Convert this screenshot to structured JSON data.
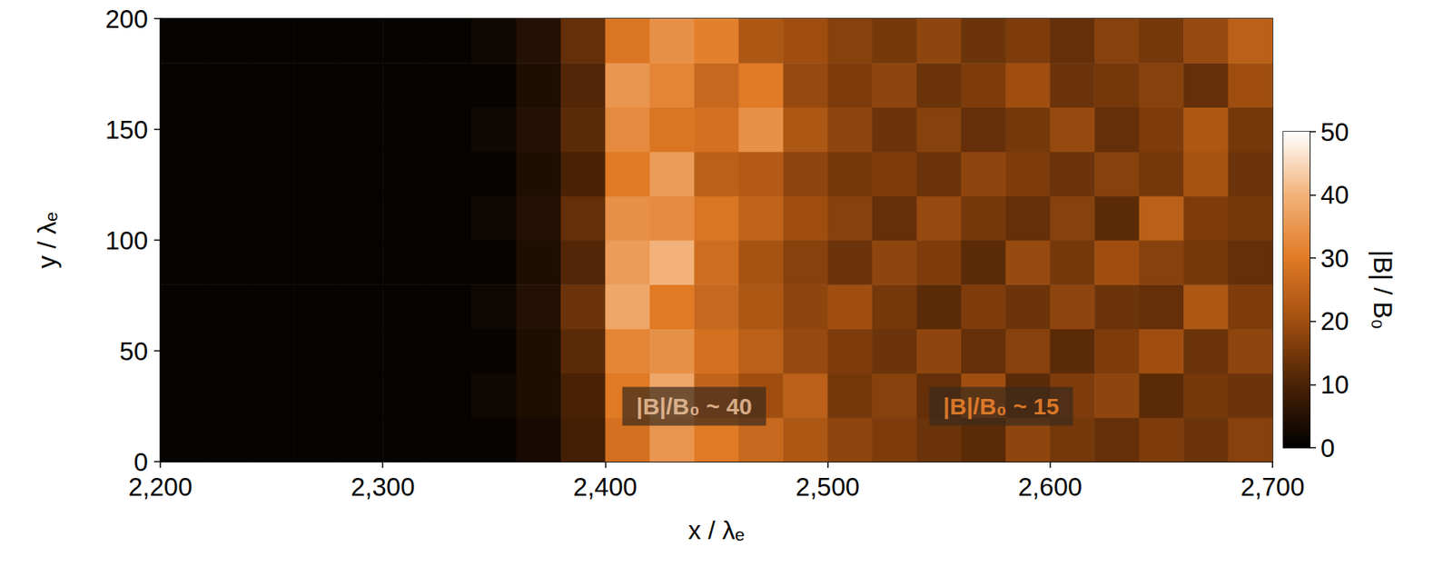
{
  "chart_data": {
    "type": "heatmap",
    "x_label": "x / λₑ",
    "y_label": "y / λₑ",
    "xlim": [
      2200,
      2700
    ],
    "xticks": [
      2200,
      2300,
      2400,
      2500,
      2600,
      2700
    ],
    "ylim": [
      0,
      200
    ],
    "yticks": [
      0,
      50,
      100,
      150,
      200
    ],
    "grid": false,
    "x_bins": [
      2200,
      2220,
      2240,
      2260,
      2280,
      2300,
      2320,
      2340,
      2360,
      2380,
      2400,
      2420,
      2440,
      2460,
      2480,
      2500,
      2520,
      2540,
      2560,
      2580,
      2600,
      2620,
      2640,
      2660,
      2680,
      2700
    ],
    "y_bins": [
      0,
      20,
      40,
      60,
      80,
      100,
      120,
      140,
      160,
      180,
      200
    ],
    "values": [
      [
        1,
        1,
        1,
        1,
        1,
        1,
        1,
        1,
        3,
        9,
        28,
        35,
        30,
        26,
        22,
        18,
        16,
        14,
        12,
        18,
        15,
        13,
        16,
        14,
        17
      ],
      [
        1,
        1,
        1,
        1,
        1,
        1,
        1,
        2,
        4,
        10,
        30,
        38,
        25,
        20,
        24,
        15,
        17,
        13,
        20,
        12,
        16,
        18,
        12,
        15,
        14
      ],
      [
        1,
        1,
        1,
        1,
        1,
        1,
        1,
        1,
        4,
        12,
        32,
        34,
        28,
        24,
        19,
        16,
        14,
        18,
        13,
        17,
        12,
        16,
        20,
        14,
        18
      ],
      [
        1,
        1,
        1,
        1,
        1,
        1,
        1,
        2,
        5,
        14,
        38,
        30,
        26,
        22,
        18,
        20,
        15,
        12,
        16,
        14,
        18,
        14,
        13,
        22,
        16
      ],
      [
        1,
        1,
        1,
        1,
        1,
        1,
        1,
        1,
        4,
        11,
        36,
        40,
        27,
        21,
        17,
        14,
        18,
        16,
        12,
        19,
        15,
        20,
        17,
        15,
        13
      ],
      [
        1,
        1,
        1,
        1,
        1,
        1,
        1,
        2,
        5,
        13,
        34,
        33,
        29,
        25,
        20,
        17,
        13,
        19,
        15,
        13,
        17,
        12,
        24,
        16,
        15
      ],
      [
        1,
        1,
        1,
        1,
        1,
        1,
        1,
        1,
        4,
        10,
        30,
        36,
        24,
        23,
        18,
        15,
        16,
        14,
        18,
        16,
        14,
        17,
        15,
        21,
        14
      ],
      [
        1,
        1,
        1,
        1,
        1,
        1,
        1,
        2,
        5,
        12,
        33,
        29,
        28,
        34,
        22,
        18,
        14,
        17,
        13,
        15,
        19,
        13,
        16,
        22,
        15
      ],
      [
        1,
        1,
        1,
        1,
        1,
        1,
        1,
        1,
        4,
        11,
        35,
        32,
        26,
        30,
        19,
        16,
        18,
        14,
        16,
        20,
        14,
        15,
        17,
        13,
        20
      ],
      [
        1,
        1,
        1,
        1,
        1,
        1,
        1,
        2,
        5,
        13,
        29,
        34,
        31,
        22,
        20,
        17,
        15,
        18,
        14,
        16,
        13,
        17,
        15,
        19,
        24
      ]
    ],
    "colorbar": {
      "label": "|B| / B₀",
      "range": [
        0,
        50
      ],
      "ticks": [
        0,
        10,
        20,
        30,
        40,
        50
      ]
    },
    "annotations": [
      {
        "text": "|B|/B₀ ~ 40",
        "x": 2440,
        "y": 25
      },
      {
        "text": "|B|/B₀ ~ 15",
        "x": 2578,
        "y": 25
      }
    ]
  }
}
